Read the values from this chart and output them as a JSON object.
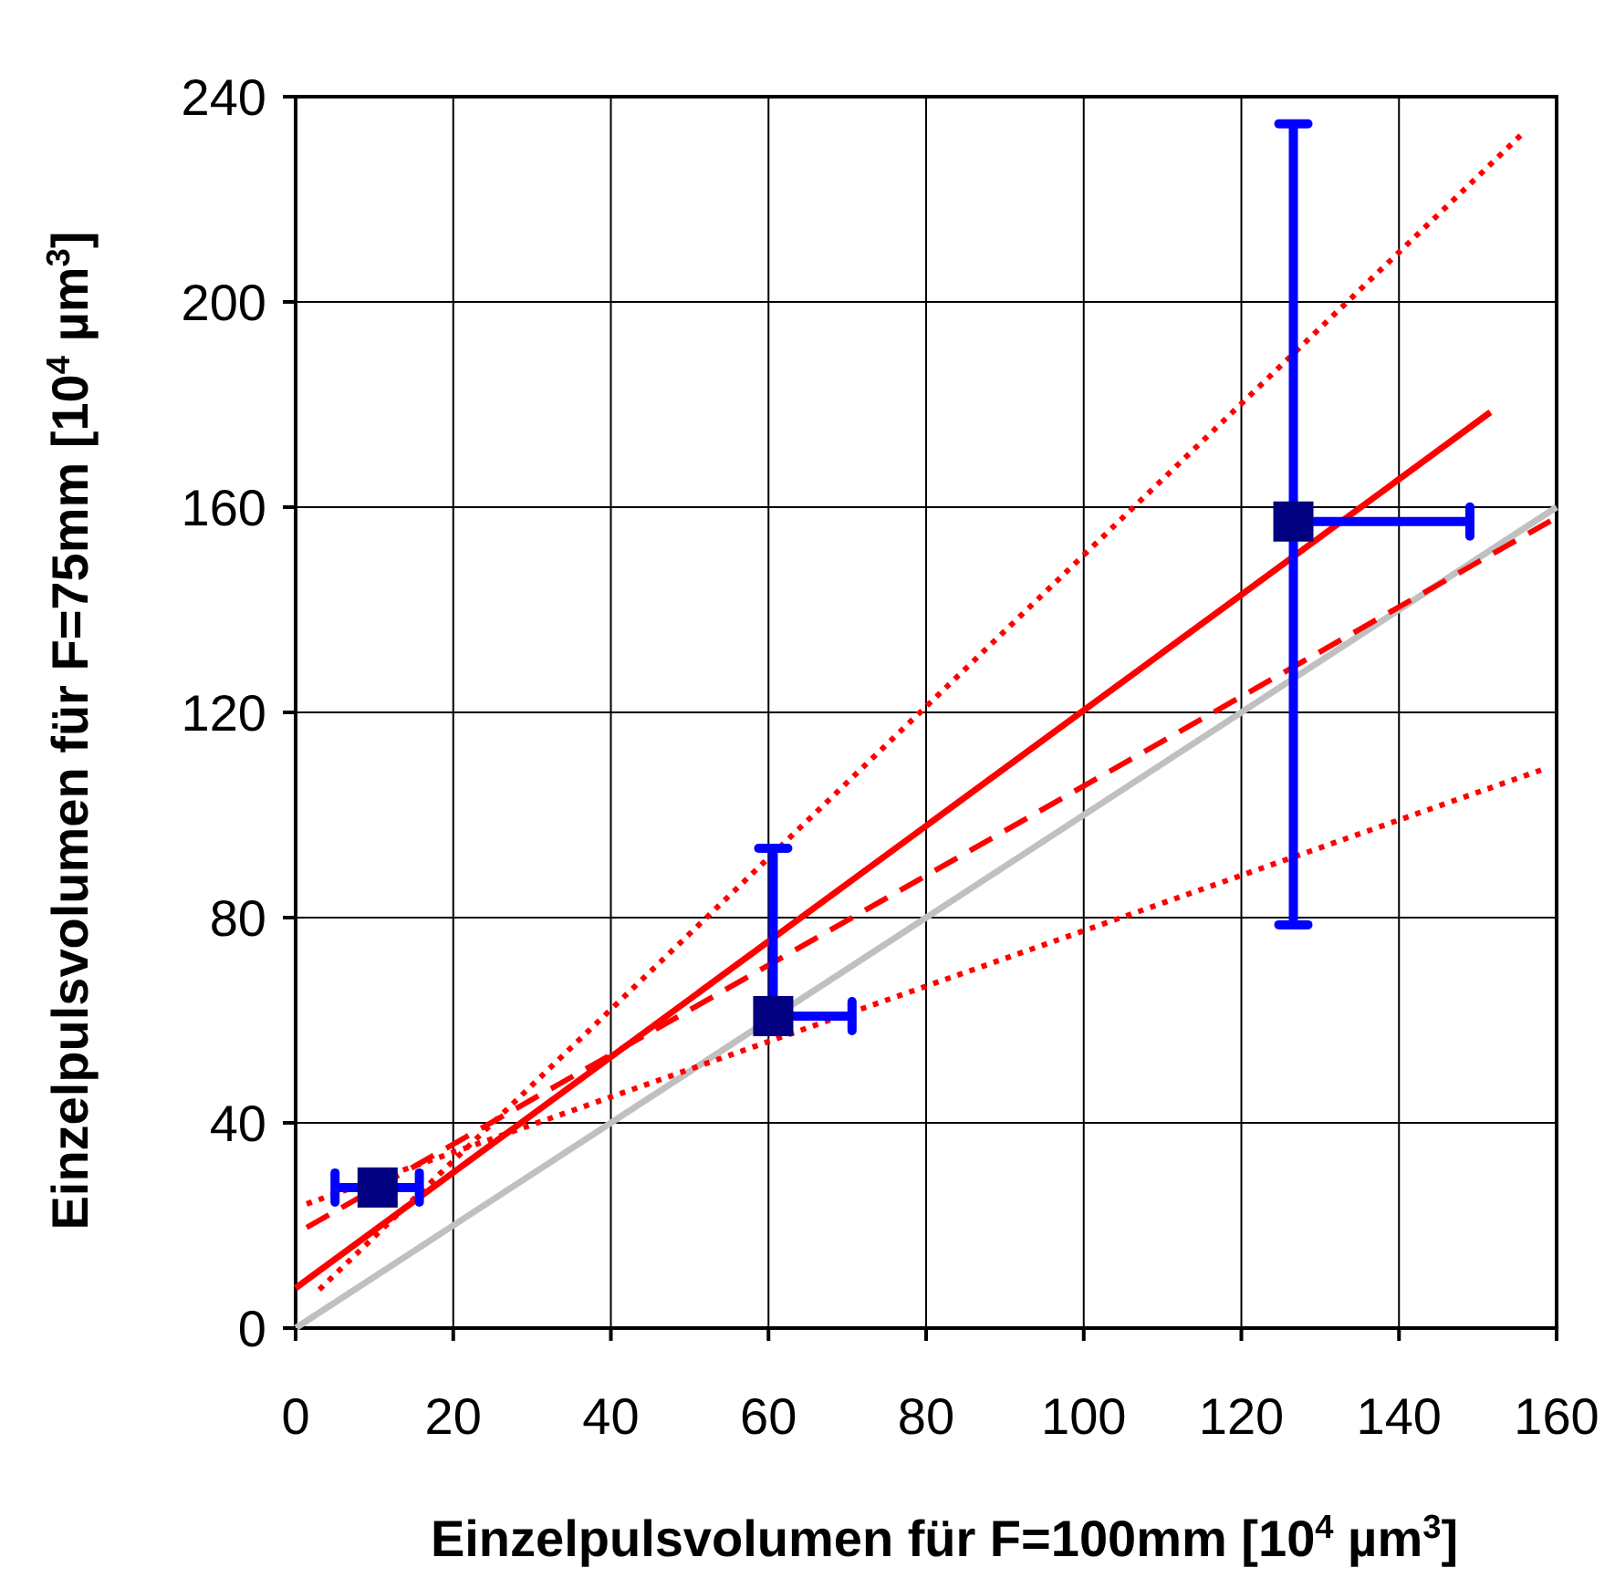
{
  "chart_data": {
    "type": "scatter",
    "xlabel": "Einzelpulsvolumen für F=100mm [10$^{4}$ µm$^{3}$]",
    "ylabel": "Einzelpulsvolumen für F=75mm [10$^{4}$ µm$^{3}$]",
    "xlim": [
      0,
      160
    ],
    "ylim": [
      0,
      240
    ],
    "xticks": [
      0,
      20,
      40,
      60,
      80,
      100,
      120,
      140,
      160
    ],
    "yticks": [
      0,
      40,
      80,
      120,
      160,
      200,
      240
    ],
    "grid": true,
    "series": [
      {
        "type": "line",
        "color": "#c0c0c0",
        "line_style": "solid",
        "x": [
          0,
          160
        ],
        "values": [
          0,
          160
        ]
      },
      {
        "type": "line",
        "color": "#ff0000",
        "line_style": "dotted",
        "x": [
          3,
          155.8
        ],
        "values": [
          7.5,
          233
        ]
      },
      {
        "type": "line",
        "color": "#ff0000",
        "line_style": "dotted",
        "x": [
          1.4,
          158.1
        ],
        "values": [
          24.2,
          108.8
        ]
      },
      {
        "type": "line",
        "color": "#ff0000",
        "line_style": "dashed",
        "x": [
          1.4,
          160
        ],
        "values": [
          19.6,
          158
        ]
      },
      {
        "type": "line",
        "color": "#ff0000",
        "line_style": "solid",
        "x": [
          0,
          151.6
        ],
        "values": [
          7.8,
          178.5
        ]
      },
      {
        "color": "#000080",
        "marker": "square",
        "x": [
          10.4,
          60.6,
          126.6
        ],
        "values": [
          27.4,
          60.8,
          157.2
        ],
        "errors": [
          null,
          [
            60.8,
            93.5
          ],
          [
            78.6,
            234.7
          ]
        ],
        "xerrors": [
          [
            5,
            15.7
          ],
          [
            60.6,
            70.6
          ],
          [
            126.6,
            149
          ]
        ]
      }
    ]
  }
}
